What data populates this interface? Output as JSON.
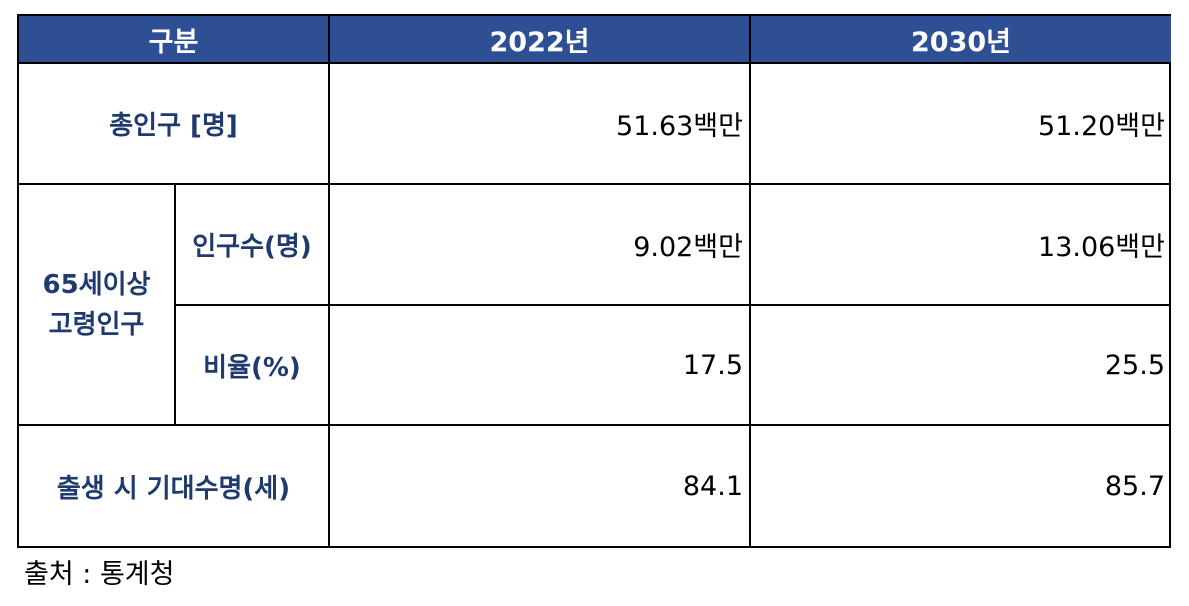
{
  "table": {
    "header": {
      "col0": "구분",
      "col1": "2022년",
      "col2": "2030년"
    },
    "rows": [
      {
        "label": "총인구 [명]",
        "v2022": "51.63백만",
        "v2030": "51.20백만"
      },
      {
        "group_line1": "65세이상",
        "group_line2": "고령인구",
        "sub": [
          {
            "label": "인구수(명)",
            "v2022": "9.02백만",
            "v2030": "13.06백만"
          },
          {
            "label": "비율(%)",
            "v2022": "17.5",
            "v2030": "25.5"
          }
        ]
      },
      {
        "label": "출생 시 기대수명(세)",
        "v2022": "84.1",
        "v2030": "85.7"
      }
    ],
    "colors": {
      "header_bg": "#2e4f93",
      "header_text": "#ffffff",
      "label_text": "#1f3a6e"
    }
  },
  "source": "출처 : 통계청"
}
